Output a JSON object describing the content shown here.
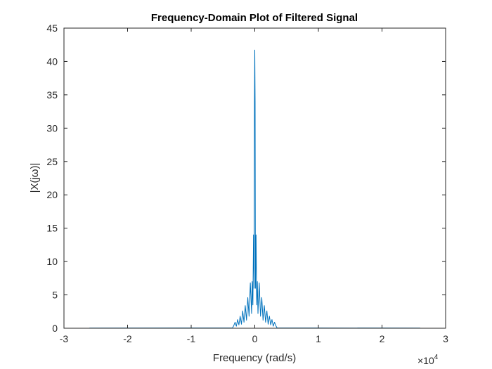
{
  "chart_data": {
    "type": "line",
    "title": "Frequency-Domain Plot of Filtered Signal",
    "xlabel": "Frequency (rad/s)",
    "ylabel": "|X(jω)|",
    "x_multiplier": {
      "base": "×10",
      "exponent": "4"
    },
    "xlim": [
      -3,
      3
    ],
    "ylim": [
      0,
      45
    ],
    "x_ticks": [
      -3,
      -2,
      -1,
      0,
      1,
      2,
      3
    ],
    "x_tick_labels": [
      "-3",
      "-2",
      "-1",
      "0",
      "1",
      "2",
      "3"
    ],
    "y_ticks": [
      0,
      5,
      10,
      15,
      20,
      25,
      30,
      35,
      40,
      45
    ],
    "y_tick_labels": [
      "0",
      "5",
      "10",
      "15",
      "20",
      "25",
      "30",
      "35",
      "40",
      "45"
    ],
    "grid": false,
    "series": [
      {
        "color": "#0072bd",
        "data_range": [
          -2.6,
          2.6
        ],
        "points": [
          [
            -2.6,
            0.02
          ],
          [
            -0.35,
            0.05
          ],
          [
            -0.33,
            0.4
          ],
          [
            -0.31,
            0.9
          ],
          [
            -0.29,
            0.3
          ],
          [
            -0.27,
            1.3
          ],
          [
            -0.25,
            0.5
          ],
          [
            -0.23,
            1.8
          ],
          [
            -0.21,
            0.6
          ],
          [
            -0.19,
            2.6
          ],
          [
            -0.17,
            0.9
          ],
          [
            -0.15,
            3.4
          ],
          [
            -0.13,
            1.2
          ],
          [
            -0.11,
            4.6
          ],
          [
            -0.09,
            1.8
          ],
          [
            -0.07,
            6.8
          ],
          [
            -0.05,
            2.2
          ],
          [
            -0.04,
            7.0
          ],
          [
            -0.03,
            3.5
          ],
          [
            -0.02,
            14.0
          ],
          [
            -0.01,
            6.0
          ],
          [
            -0.005,
            34.0
          ],
          [
            0.0,
            41.7
          ],
          [
            0.005,
            34.0
          ],
          [
            0.01,
            6.0
          ],
          [
            0.02,
            14.0
          ],
          [
            0.03,
            3.5
          ],
          [
            0.04,
            7.0
          ],
          [
            0.05,
            2.2
          ],
          [
            0.07,
            6.8
          ],
          [
            0.09,
            1.8
          ],
          [
            0.11,
            4.6
          ],
          [
            0.13,
            1.2
          ],
          [
            0.15,
            3.4
          ],
          [
            0.17,
            0.9
          ],
          [
            0.19,
            2.6
          ],
          [
            0.21,
            0.6
          ],
          [
            0.23,
            1.8
          ],
          [
            0.25,
            0.5
          ],
          [
            0.27,
            1.3
          ],
          [
            0.29,
            0.3
          ],
          [
            0.31,
            0.9
          ],
          [
            0.33,
            0.4
          ],
          [
            0.35,
            0.05
          ],
          [
            2.6,
            0.02
          ]
        ]
      }
    ]
  }
}
